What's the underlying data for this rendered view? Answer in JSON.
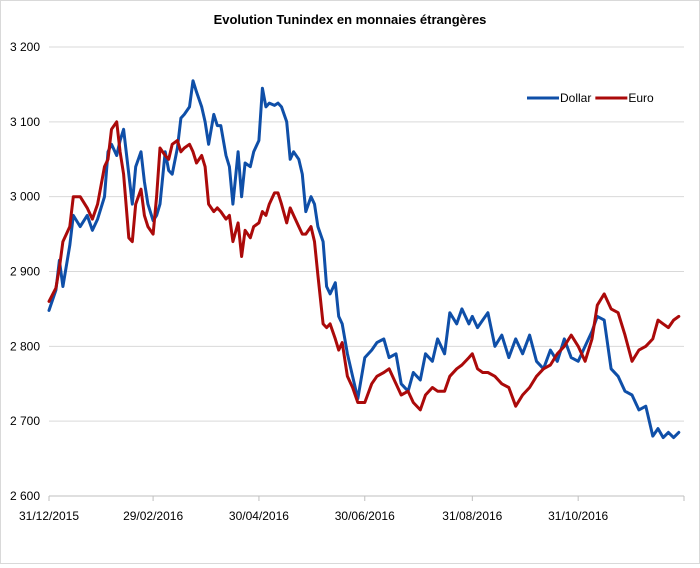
{
  "chart_data": {
    "type": "line",
    "title": "Evolution Tunindex en monnaies étrangères",
    "xlabel": "",
    "ylabel": "",
    "ylim": [
      2600,
      3200
    ],
    "y_ticks": [
      "2 600",
      "2 700",
      "2 800",
      "2 900",
      "3 000",
      "3 100",
      "3 200"
    ],
    "y_tick_values": [
      2600,
      2700,
      2800,
      2900,
      3000,
      3100,
      3200
    ],
    "x_tick_labels": [
      "31/12/2015",
      "29/02/2016",
      "30/04/2016",
      "30/06/2016",
      "31/08/2016",
      "31/10/2016"
    ],
    "x_tick_values": [
      "2015-12-31",
      "2016-02-29",
      "2016-04-30",
      "2016-06-30",
      "2016-08-31",
      "2016-10-31"
    ],
    "xlim": [
      "2015-12-31",
      "2016-12-31"
    ],
    "grid": "horizontal",
    "legend_position": "top-right",
    "series": [
      {
        "name": "Dollar",
        "color": "#0f4fa8",
        "points": [
          [
            "2015-12-31",
            2848
          ],
          [
            "2016-01-04",
            2875
          ],
          [
            "2016-01-06",
            2915
          ],
          [
            "2016-01-08",
            2880
          ],
          [
            "2016-01-12",
            2935
          ],
          [
            "2016-01-14",
            2975
          ],
          [
            "2016-01-18",
            2960
          ],
          [
            "2016-01-22",
            2975
          ],
          [
            "2016-01-25",
            2955
          ],
          [
            "2016-01-28",
            2970
          ],
          [
            "2016-02-01",
            3000
          ],
          [
            "2016-02-03",
            3060
          ],
          [
            "2016-02-05",
            3070
          ],
          [
            "2016-02-08",
            3055
          ],
          [
            "2016-02-10",
            3075
          ],
          [
            "2016-02-12",
            3090
          ],
          [
            "2016-02-15",
            3030
          ],
          [
            "2016-02-17",
            2990
          ],
          [
            "2016-02-19",
            3040
          ],
          [
            "2016-02-22",
            3060
          ],
          [
            "2016-02-24",
            3020
          ],
          [
            "2016-02-26",
            2990
          ],
          [
            "2016-02-29",
            2968
          ],
          [
            "2016-03-02",
            2975
          ],
          [
            "2016-03-04",
            2990
          ],
          [
            "2016-03-07",
            3060
          ],
          [
            "2016-03-09",
            3035
          ],
          [
            "2016-03-11",
            3030
          ],
          [
            "2016-03-14",
            3065
          ],
          [
            "2016-03-16",
            3105
          ],
          [
            "2016-03-18",
            3110
          ],
          [
            "2016-03-21",
            3120
          ],
          [
            "2016-03-23",
            3155
          ],
          [
            "2016-03-25",
            3140
          ],
          [
            "2016-03-28",
            3120
          ],
          [
            "2016-03-30",
            3100
          ],
          [
            "2016-04-01",
            3070
          ],
          [
            "2016-04-04",
            3110
          ],
          [
            "2016-04-06",
            3095
          ],
          [
            "2016-04-08",
            3095
          ],
          [
            "2016-04-11",
            3055
          ],
          [
            "2016-04-13",
            3040
          ],
          [
            "2016-04-15",
            2990
          ],
          [
            "2016-04-18",
            3060
          ],
          [
            "2016-04-20",
            3000
          ],
          [
            "2016-04-22",
            3045
          ],
          [
            "2016-04-25",
            3040
          ],
          [
            "2016-04-27",
            3060
          ],
          [
            "2016-04-30",
            3075
          ],
          [
            "2016-05-02",
            3145
          ],
          [
            "2016-05-04",
            3120
          ],
          [
            "2016-05-06",
            3125
          ],
          [
            "2016-05-09",
            3122
          ],
          [
            "2016-05-11",
            3125
          ],
          [
            "2016-05-13",
            3120
          ],
          [
            "2016-05-16",
            3100
          ],
          [
            "2016-05-18",
            3050
          ],
          [
            "2016-05-20",
            3060
          ],
          [
            "2016-05-23",
            3050
          ],
          [
            "2016-05-25",
            3030
          ],
          [
            "2016-05-27",
            2980
          ],
          [
            "2016-05-30",
            3000
          ],
          [
            "2016-06-01",
            2990
          ],
          [
            "2016-06-03",
            2960
          ],
          [
            "2016-06-06",
            2940
          ],
          [
            "2016-06-08",
            2880
          ],
          [
            "2016-06-10",
            2870
          ],
          [
            "2016-06-13",
            2885
          ],
          [
            "2016-06-15",
            2840
          ],
          [
            "2016-06-17",
            2830
          ],
          [
            "2016-06-20",
            2790
          ],
          [
            "2016-06-23",
            2760
          ],
          [
            "2016-06-26",
            2730
          ],
          [
            "2016-06-30",
            2785
          ],
          [
            "2016-07-04",
            2795
          ],
          [
            "2016-07-07",
            2805
          ],
          [
            "2016-07-11",
            2810
          ],
          [
            "2016-07-14",
            2785
          ],
          [
            "2016-07-18",
            2790
          ],
          [
            "2016-07-21",
            2750
          ],
          [
            "2016-07-25",
            2740
          ],
          [
            "2016-07-28",
            2765
          ],
          [
            "2016-08-01",
            2755
          ],
          [
            "2016-08-04",
            2790
          ],
          [
            "2016-08-08",
            2780
          ],
          [
            "2016-08-11",
            2810
          ],
          [
            "2016-08-15",
            2790
          ],
          [
            "2016-08-18",
            2845
          ],
          [
            "2016-08-22",
            2830
          ],
          [
            "2016-08-25",
            2850
          ],
          [
            "2016-08-29",
            2830
          ],
          [
            "2016-08-31",
            2840
          ],
          [
            "2016-09-03",
            2825
          ],
          [
            "2016-09-06",
            2835
          ],
          [
            "2016-09-09",
            2845
          ],
          [
            "2016-09-13",
            2800
          ],
          [
            "2016-09-17",
            2815
          ],
          [
            "2016-09-21",
            2785
          ],
          [
            "2016-09-25",
            2810
          ],
          [
            "2016-09-29",
            2790
          ],
          [
            "2016-10-03",
            2815
          ],
          [
            "2016-10-07",
            2780
          ],
          [
            "2016-10-11",
            2770
          ],
          [
            "2016-10-15",
            2795
          ],
          [
            "2016-10-19",
            2780
          ],
          [
            "2016-10-23",
            2810
          ],
          [
            "2016-10-27",
            2785
          ],
          [
            "2016-10-31",
            2780
          ],
          [
            "2016-11-04",
            2800
          ],
          [
            "2016-11-08",
            2820
          ],
          [
            "2016-11-11",
            2840
          ],
          [
            "2016-11-15",
            2835
          ],
          [
            "2016-11-19",
            2770
          ],
          [
            "2016-11-23",
            2760
          ],
          [
            "2016-11-27",
            2740
          ],
          [
            "2016-12-01",
            2735
          ],
          [
            "2016-12-05",
            2715
          ],
          [
            "2016-12-09",
            2720
          ],
          [
            "2016-12-13",
            2680
          ],
          [
            "2016-12-16",
            2690
          ],
          [
            "2016-12-19",
            2678
          ],
          [
            "2016-12-22",
            2685
          ],
          [
            "2016-12-25",
            2678
          ],
          [
            "2016-12-28",
            2685
          ]
        ]
      },
      {
        "name": "Euro",
        "color": "#ab0a0a",
        "points": [
          [
            "2015-12-31",
            2860
          ],
          [
            "2016-01-04",
            2878
          ],
          [
            "2016-01-06",
            2905
          ],
          [
            "2016-01-08",
            2940
          ],
          [
            "2016-01-12",
            2960
          ],
          [
            "2016-01-14",
            3000
          ],
          [
            "2016-01-18",
            3000
          ],
          [
            "2016-01-22",
            2985
          ],
          [
            "2016-01-25",
            2970
          ],
          [
            "2016-01-28",
            2990
          ],
          [
            "2016-02-01",
            3040
          ],
          [
            "2016-02-03",
            3050
          ],
          [
            "2016-02-05",
            3090
          ],
          [
            "2016-02-08",
            3100
          ],
          [
            "2016-02-10",
            3060
          ],
          [
            "2016-02-12",
            3030
          ],
          [
            "2016-02-15",
            2945
          ],
          [
            "2016-02-17",
            2940
          ],
          [
            "2016-02-19",
            2990
          ],
          [
            "2016-02-22",
            3010
          ],
          [
            "2016-02-24",
            2975
          ],
          [
            "2016-02-26",
            2960
          ],
          [
            "2016-02-29",
            2950
          ],
          [
            "2016-03-02",
            3000
          ],
          [
            "2016-03-04",
            3065
          ],
          [
            "2016-03-07",
            3055
          ],
          [
            "2016-03-09",
            3050
          ],
          [
            "2016-03-11",
            3070
          ],
          [
            "2016-03-14",
            3075
          ],
          [
            "2016-03-16",
            3060
          ],
          [
            "2016-03-18",
            3065
          ],
          [
            "2016-03-21",
            3070
          ],
          [
            "2016-03-23",
            3060
          ],
          [
            "2016-03-25",
            3045
          ],
          [
            "2016-03-28",
            3055
          ],
          [
            "2016-03-30",
            3040
          ],
          [
            "2016-04-01",
            2990
          ],
          [
            "2016-04-04",
            2980
          ],
          [
            "2016-04-06",
            2985
          ],
          [
            "2016-04-08",
            2980
          ],
          [
            "2016-04-11",
            2970
          ],
          [
            "2016-04-13",
            2975
          ],
          [
            "2016-04-15",
            2940
          ],
          [
            "2016-04-18",
            2965
          ],
          [
            "2016-04-20",
            2920
          ],
          [
            "2016-04-22",
            2955
          ],
          [
            "2016-04-25",
            2945
          ],
          [
            "2016-04-27",
            2960
          ],
          [
            "2016-04-30",
            2965
          ],
          [
            "2016-05-02",
            2980
          ],
          [
            "2016-05-04",
            2975
          ],
          [
            "2016-05-06",
            2990
          ],
          [
            "2016-05-09",
            3005
          ],
          [
            "2016-05-11",
            3005
          ],
          [
            "2016-05-13",
            2990
          ],
          [
            "2016-05-16",
            2965
          ],
          [
            "2016-05-18",
            2985
          ],
          [
            "2016-05-20",
            2975
          ],
          [
            "2016-05-23",
            2960
          ],
          [
            "2016-05-25",
            2950
          ],
          [
            "2016-05-27",
            2950
          ],
          [
            "2016-05-30",
            2960
          ],
          [
            "2016-06-01",
            2940
          ],
          [
            "2016-06-03",
            2895
          ],
          [
            "2016-06-06",
            2830
          ],
          [
            "2016-06-08",
            2825
          ],
          [
            "2016-06-10",
            2830
          ],
          [
            "2016-06-13",
            2810
          ],
          [
            "2016-06-15",
            2795
          ],
          [
            "2016-06-17",
            2805
          ],
          [
            "2016-06-20",
            2760
          ],
          [
            "2016-06-23",
            2745
          ],
          [
            "2016-06-26",
            2725
          ],
          [
            "2016-06-30",
            2725
          ],
          [
            "2016-07-04",
            2750
          ],
          [
            "2016-07-07",
            2760
          ],
          [
            "2016-07-11",
            2765
          ],
          [
            "2016-07-14",
            2770
          ],
          [
            "2016-07-18",
            2750
          ],
          [
            "2016-07-21",
            2735
          ],
          [
            "2016-07-25",
            2740
          ],
          [
            "2016-07-28",
            2725
          ],
          [
            "2016-08-01",
            2715
          ],
          [
            "2016-08-04",
            2735
          ],
          [
            "2016-08-08",
            2745
          ],
          [
            "2016-08-11",
            2740
          ],
          [
            "2016-08-15",
            2740
          ],
          [
            "2016-08-18",
            2760
          ],
          [
            "2016-08-22",
            2770
          ],
          [
            "2016-08-25",
            2775
          ],
          [
            "2016-08-29",
            2785
          ],
          [
            "2016-08-31",
            2790
          ],
          [
            "2016-09-03",
            2770
          ],
          [
            "2016-09-06",
            2765
          ],
          [
            "2016-09-09",
            2765
          ],
          [
            "2016-09-13",
            2760
          ],
          [
            "2016-09-17",
            2750
          ],
          [
            "2016-09-21",
            2745
          ],
          [
            "2016-09-25",
            2720
          ],
          [
            "2016-09-29",
            2735
          ],
          [
            "2016-10-03",
            2745
          ],
          [
            "2016-10-07",
            2760
          ],
          [
            "2016-10-11",
            2770
          ],
          [
            "2016-10-15",
            2775
          ],
          [
            "2016-10-19",
            2790
          ],
          [
            "2016-10-23",
            2800
          ],
          [
            "2016-10-27",
            2815
          ],
          [
            "2016-10-31",
            2800
          ],
          [
            "2016-11-04",
            2780
          ],
          [
            "2016-11-08",
            2810
          ],
          [
            "2016-11-11",
            2855
          ],
          [
            "2016-11-15",
            2870
          ],
          [
            "2016-11-19",
            2850
          ],
          [
            "2016-11-23",
            2845
          ],
          [
            "2016-11-27",
            2815
          ],
          [
            "2016-12-01",
            2780
          ],
          [
            "2016-12-05",
            2795
          ],
          [
            "2016-12-09",
            2800
          ],
          [
            "2016-12-13",
            2810
          ],
          [
            "2016-12-16",
            2835
          ],
          [
            "2016-12-19",
            2830
          ],
          [
            "2016-12-22",
            2825
          ],
          [
            "2016-12-25",
            2835
          ],
          [
            "2016-12-28",
            2840
          ]
        ]
      }
    ]
  }
}
